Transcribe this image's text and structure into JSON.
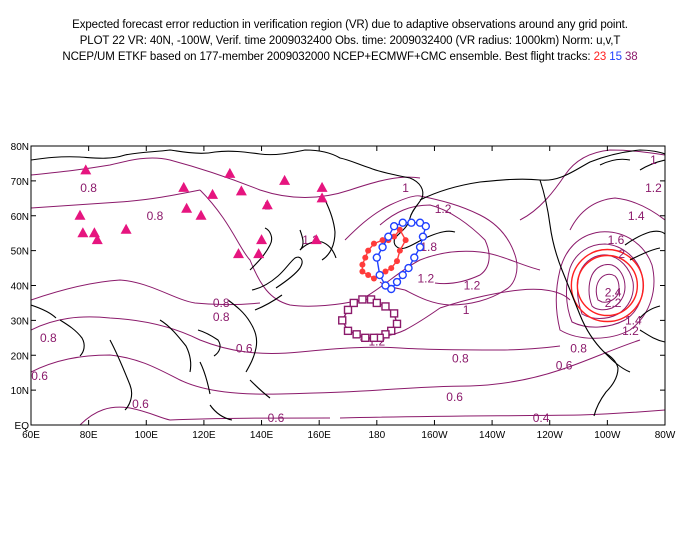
{
  "header": {
    "line1": "Expected forecast error reduction in verification region (VR) due to adaptive observations around any grid point.",
    "line2": "PLOT 22 VR: 40N, -100W, Verif. time 2009032400 Obs. time: 2009032400 (VR radius: 1000km) Norm: u,v,T",
    "line3_prefix": "NCEP/UM ETKF based on 177-member 2009032000 NCEP+ECMWF+CMC ensemble. Best flight tracks:",
    "track_red": "23",
    "track_blue": "15",
    "track_purple": "38"
  },
  "map": {
    "lon_range": [
      60,
      280
    ],
    "lat_range": [
      0,
      80
    ],
    "x_ticks": [
      {
        "lon": 60,
        "label": "60E"
      },
      {
        "lon": 80,
        "label": "80E"
      },
      {
        "lon": 100,
        "label": "100E"
      },
      {
        "lon": 120,
        "label": "120E"
      },
      {
        "lon": 140,
        "label": "140E"
      },
      {
        "lon": 160,
        "label": "160E"
      },
      {
        "lon": 180,
        "label": "180"
      },
      {
        "lon": 200,
        "label": "160W"
      },
      {
        "lon": 220,
        "label": "140W"
      },
      {
        "lon": 240,
        "label": "120W"
      },
      {
        "lon": 260,
        "label": "100W"
      },
      {
        "lon": 280,
        "label": "80W"
      }
    ],
    "y_ticks": [
      {
        "lat": 0,
        "label": "EQ"
      },
      {
        "lat": 10,
        "label": "10N"
      },
      {
        "lat": 20,
        "label": "20N"
      },
      {
        "lat": 30,
        "label": "30N"
      },
      {
        "lat": 40,
        "label": "40N"
      },
      {
        "lat": 50,
        "label": "50N"
      },
      {
        "lat": 60,
        "label": "60N"
      },
      {
        "lat": 70,
        "label": "70N"
      },
      {
        "lat": 80,
        "label": "80N"
      }
    ],
    "colors": {
      "contour": "#8b1a6b",
      "vr_circle": "#ff2020",
      "triangle": "#e6157f",
      "track_red": "#ff3b3b",
      "track_blue": "#2040ff",
      "track_purple": "#8b1a6b",
      "coast": "#000000"
    },
    "contour_labels": [
      {
        "lon": 80,
        "lat": 68,
        "text": "0.8"
      },
      {
        "lon": 103,
        "lat": 60,
        "text": "0.8"
      },
      {
        "lon": 142,
        "lat": 63,
        "text": "1"
      },
      {
        "lon": 157,
        "lat": 53,
        "text": "1.2"
      },
      {
        "lon": 126,
        "lat": 35,
        "text": "0.8"
      },
      {
        "lon": 126,
        "lat": 31,
        "text": "0.8"
      },
      {
        "lon": 66,
        "lat": 25,
        "text": "0.8"
      },
      {
        "lon": 134,
        "lat": 22,
        "text": "0.6"
      },
      {
        "lon": 63,
        "lat": 14,
        "text": "0.6"
      },
      {
        "lon": 98,
        "lat": 6,
        "text": "0.6"
      },
      {
        "lon": 145,
        "lat": 2,
        "text": "0.6"
      },
      {
        "lon": 190,
        "lat": 68,
        "text": "1"
      },
      {
        "lon": 203,
        "lat": 62,
        "text": "1.2"
      },
      {
        "lon": 198,
        "lat": 51,
        "text": "1.8"
      },
      {
        "lon": 197,
        "lat": 42,
        "text": "1.2"
      },
      {
        "lon": 213,
        "lat": 40,
        "text": "1.2"
      },
      {
        "lon": 211,
        "lat": 33,
        "text": "1"
      },
      {
        "lon": 180,
        "lat": 24,
        "text": "1.2"
      },
      {
        "lon": 209,
        "lat": 19,
        "text": "0.8"
      },
      {
        "lon": 207,
        "lat": 8,
        "text": "0.6"
      },
      {
        "lon": 250,
        "lat": 22,
        "text": "0.8"
      },
      {
        "lon": 245,
        "lat": 17,
        "text": "0.6"
      },
      {
        "lon": 237,
        "lat": 2,
        "text": "0.4"
      },
      {
        "lon": 268,
        "lat": 27,
        "text": "1.2"
      },
      {
        "lon": 269,
        "lat": 30,
        "text": "1.4"
      },
      {
        "lon": 276,
        "lat": 76,
        "text": "1"
      },
      {
        "lon": 276,
        "lat": 68,
        "text": "1.2"
      },
      {
        "lon": 270,
        "lat": 60,
        "text": "1.4"
      },
      {
        "lon": 263,
        "lat": 53,
        "text": "1.6"
      },
      {
        "lon": 265,
        "lat": 49,
        "text": "2"
      },
      {
        "lon": 262,
        "lat": 38,
        "text": "2.4"
      },
      {
        "lon": 262,
        "lat": 35,
        "text": "2.2"
      }
    ],
    "triangles": [
      [
        79,
        73
      ],
      [
        77,
        60
      ],
      [
        78,
        55
      ],
      [
        83,
        53
      ],
      [
        82,
        55
      ],
      [
        93,
        56
      ],
      [
        113,
        68
      ],
      [
        114,
        62
      ],
      [
        119,
        60
      ],
      [
        123,
        66
      ],
      [
        129,
        72
      ],
      [
        133,
        67
      ],
      [
        148,
        70
      ],
      [
        161,
        68
      ],
      [
        161,
        65
      ],
      [
        142,
        63
      ],
      [
        140,
        53
      ],
      [
        139,
        49
      ],
      [
        132,
        49
      ],
      [
        159,
        53
      ]
    ],
    "track_red": [
      [
        175,
        46
      ],
      [
        176,
        48
      ],
      [
        177,
        50
      ],
      [
        179,
        52
      ],
      [
        182,
        53
      ],
      [
        184,
        53
      ],
      [
        186,
        54
      ],
      [
        188,
        56
      ],
      [
        190,
        53
      ],
      [
        188,
        50
      ],
      [
        187,
        47
      ],
      [
        185,
        45
      ],
      [
        183,
        44
      ],
      [
        181,
        43
      ],
      [
        179,
        42
      ],
      [
        177,
        43
      ],
      [
        175,
        44
      ]
    ],
    "track_blue": [
      [
        180,
        48
      ],
      [
        182,
        51
      ],
      [
        184,
        54
      ],
      [
        186,
        57
      ],
      [
        189,
        58
      ],
      [
        192,
        58
      ],
      [
        195,
        58
      ],
      [
        197,
        57
      ],
      [
        196,
        54
      ],
      [
        195,
        51
      ],
      [
        193,
        48
      ],
      [
        191,
        45
      ],
      [
        189,
        43
      ],
      [
        187,
        41
      ],
      [
        185,
        39
      ],
      [
        183,
        40
      ],
      [
        181,
        43
      ]
    ],
    "track_purple": [
      [
        168,
        30
      ],
      [
        170,
        33
      ],
      [
        172,
        35
      ],
      [
        175,
        36
      ],
      [
        178,
        36
      ],
      [
        180,
        35
      ],
      [
        183,
        34
      ],
      [
        186,
        32
      ],
      [
        187,
        29
      ],
      [
        185,
        27
      ],
      [
        183,
        26
      ],
      [
        181,
        25
      ],
      [
        179,
        25
      ],
      [
        176,
        25
      ],
      [
        173,
        26
      ],
      [
        170,
        27
      ]
    ],
    "vr_center": [
      260,
      40
    ]
  }
}
